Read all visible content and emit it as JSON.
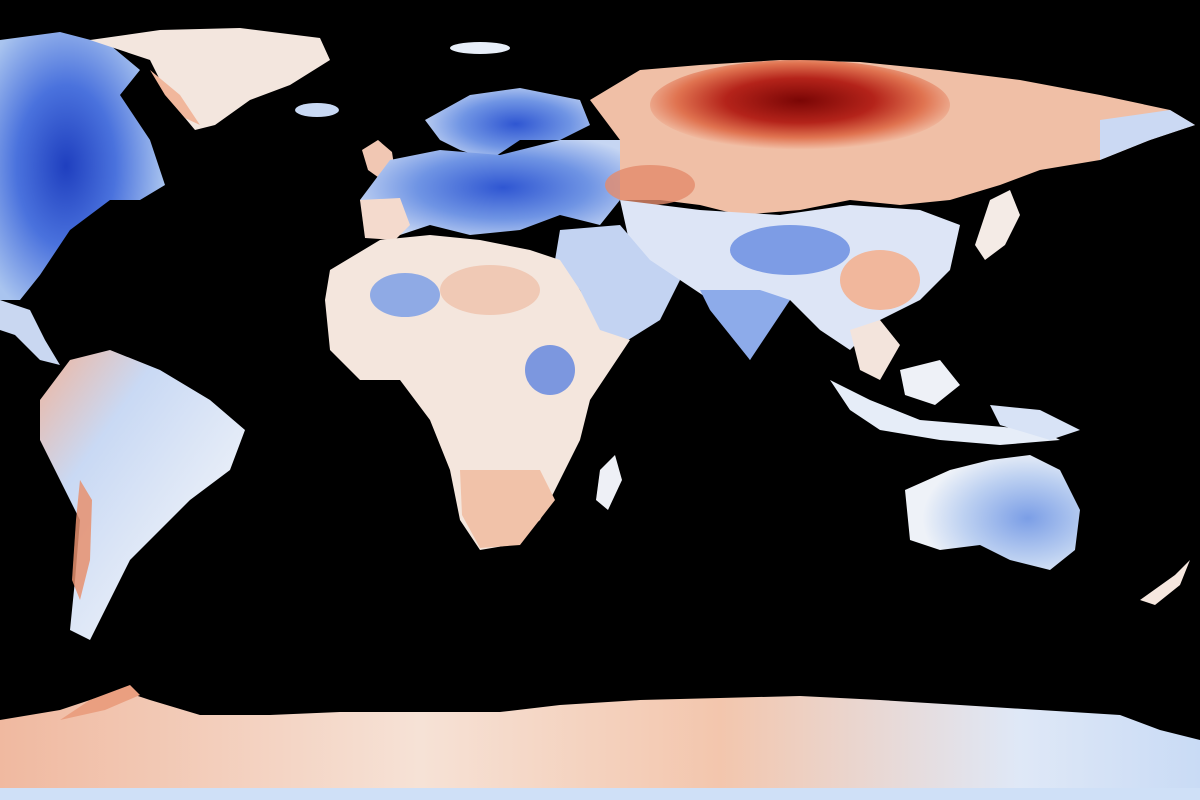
{
  "map": {
    "projection": "equirectangular",
    "ocean_color": "#000000",
    "palette": {
      "strong_cold": "#1f3fbf",
      "cold": "#4a72dd",
      "mild_cold": "#a9c4ef",
      "neutral": "#f4eee9",
      "mild_warm": "#f2c1a8",
      "warm": "#e07350",
      "strong_warm": "#a8140f",
      "extreme_warm": "#7a0605"
    },
    "regions": [
      {
        "name": "north-america",
        "anomaly": "cold"
      },
      {
        "name": "greenland",
        "anomaly": "neutral"
      },
      {
        "name": "south-america",
        "anomaly": "mild-cold"
      },
      {
        "name": "europe",
        "anomaly": "cold"
      },
      {
        "name": "africa",
        "anomaly": "mixed"
      },
      {
        "name": "siberia",
        "anomaly": "strong-warm"
      },
      {
        "name": "asia",
        "anomaly": "mixed"
      },
      {
        "name": "india",
        "anomaly": "cold"
      },
      {
        "name": "australia",
        "anomaly": "mild-cold"
      },
      {
        "name": "antarctica",
        "anomaly": "mild-warm"
      }
    ]
  }
}
